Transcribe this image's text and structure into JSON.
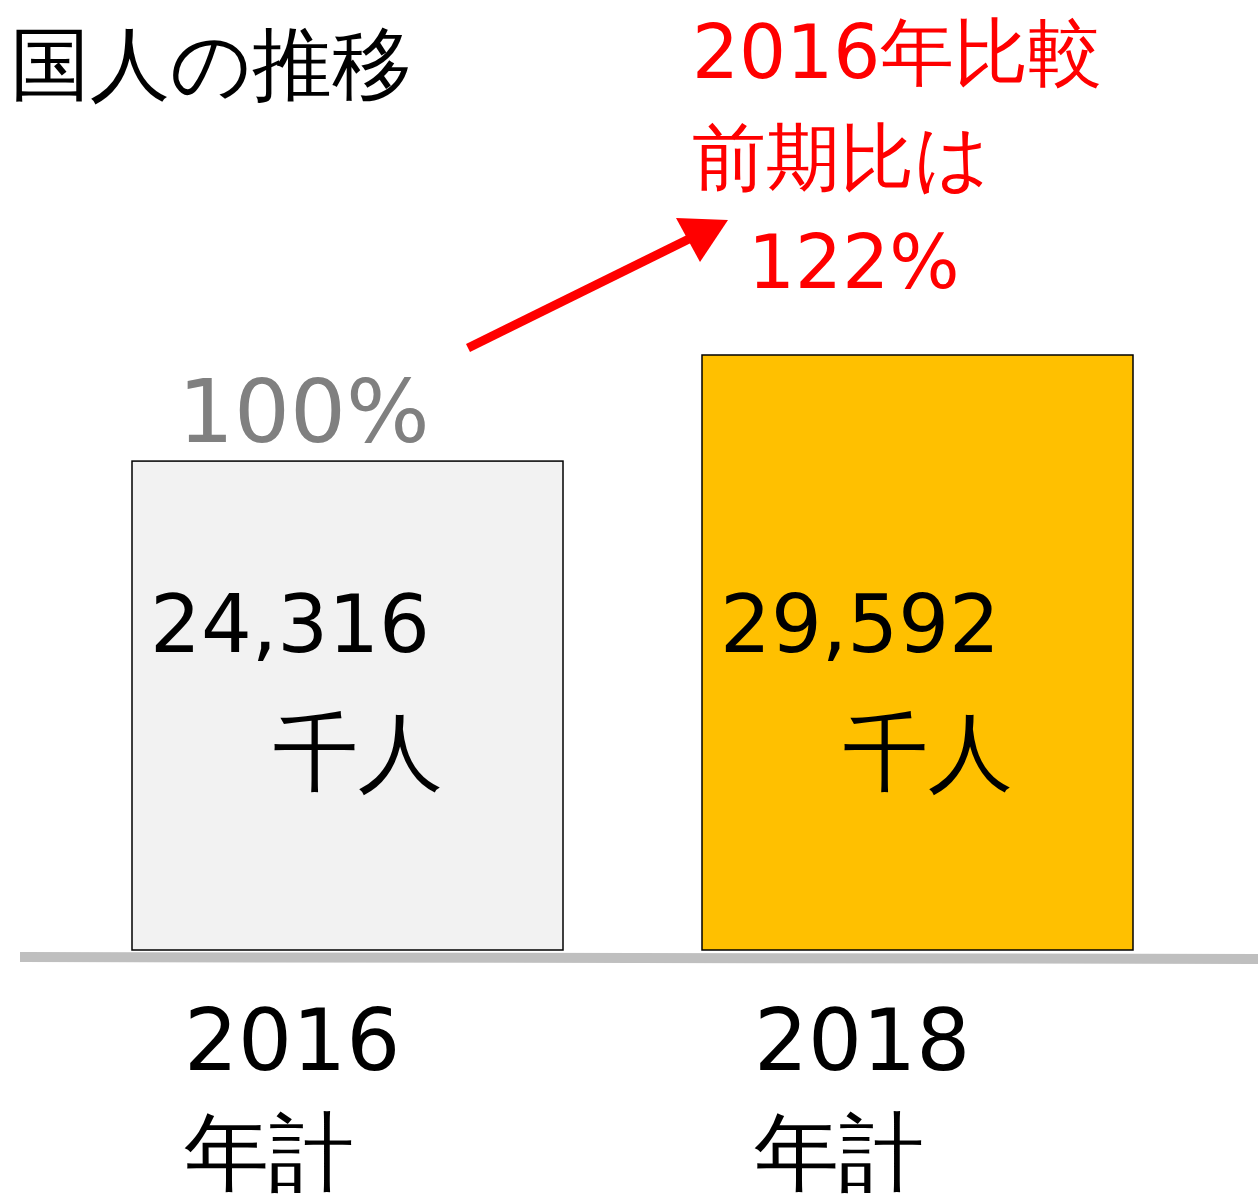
{
  "chart_data": {
    "type": "bar",
    "title": "国人の推移",
    "categories": [
      "2016\n年計",
      "2018\n年計"
    ],
    "values": [
      24316,
      29592
    ],
    "colors": [
      "#f2f2f2",
      "#ffc000"
    ],
    "value_labels": [
      "24,316\n千人",
      "29,592\n千人"
    ],
    "annotations": [
      "100%",
      "2016年比較",
      "前期比は",
      "122%"
    ]
  }
}
